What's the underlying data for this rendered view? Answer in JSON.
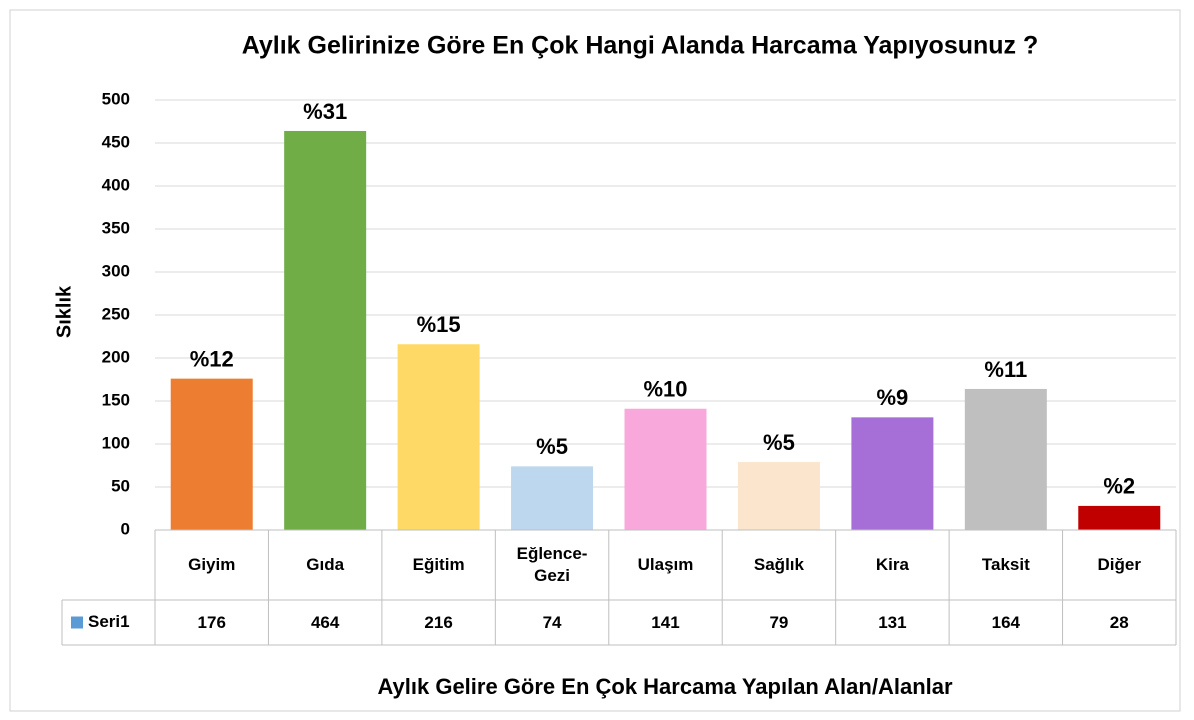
{
  "chart_data": {
    "type": "bar",
    "title": "Aylık Gelirinize Göre En Çok Hangi Alanda Harcama Yapıyosunuz ?",
    "y_label": "Sıklık",
    "x_label": "Aylık Gelire Göre En Çok Harcama Yapılan Alan/Alanlar",
    "categories": [
      "Giyim",
      "Gıda",
      "Eğitim",
      "Eğlence-Gezi",
      "Ulaşım",
      "Sağlık",
      "Kira",
      "Taksit",
      "Diğer"
    ],
    "series": [
      {
        "name": "Seri1",
        "color": "#5b9bd5",
        "values": [
          176,
          464,
          216,
          74,
          141,
          79,
          131,
          164,
          28
        ],
        "colors": [
          "#ed7d31",
          "#70ad47",
          "#ffd966",
          "#bdd7ee",
          "#f9a8dc",
          "#fbe5cd",
          "#a66fd7",
          "#bfbfbf",
          "#c00000"
        ],
        "percent_labels": [
          "%12",
          "%31",
          "%15",
          "%5",
          "%10",
          "%5",
          "%9",
          "%11",
          "%2"
        ]
      }
    ],
    "ylim": [
      0,
      500
    ],
    "yticks": [
      0,
      50,
      100,
      150,
      200,
      250,
      300,
      350,
      400,
      450,
      500
    ],
    "grid": true,
    "data_table": true
  }
}
